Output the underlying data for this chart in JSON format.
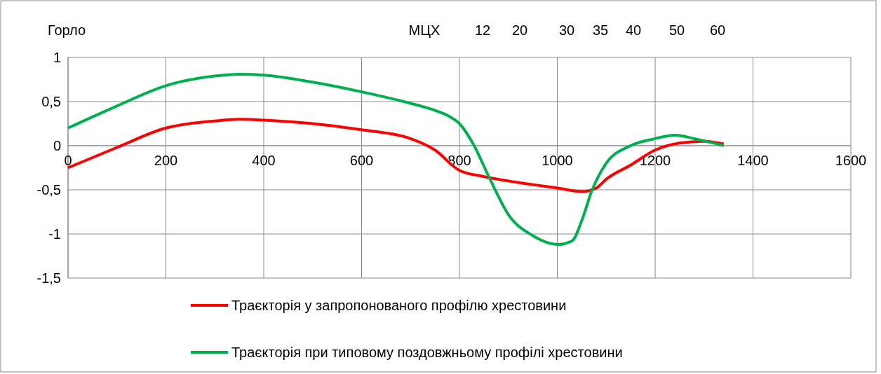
{
  "chart_data": {
    "type": "line",
    "xlim": [
      0,
      1600
    ],
    "xticks": [
      0,
      200,
      400,
      600,
      800,
      1000,
      1200,
      1400,
      1600
    ],
    "ylim": [
      -1.5,
      1
    ],
    "yticks": [
      {
        "value": -1.5,
        "label": "-1,5"
      },
      {
        "value": -1,
        "label": "-1"
      },
      {
        "value": -0.5,
        "label": "-0,5"
      },
      {
        "value": 0,
        "label": "0"
      },
      {
        "value": 0.5,
        "label": "0,5"
      },
      {
        "value": 1,
        "label": "1"
      }
    ],
    "grid": true,
    "legend": "bottom",
    "marker": "none",
    "line_style": "solid",
    "annotations": [
      "Горло",
      "МЦХ",
      "12",
      "20",
      "30",
      "35",
      "40",
      "50",
      "60"
    ],
    "series": [
      {
        "name": "Траєкторія у запропонованого профілю хрестовини",
        "color": "#ff0000",
        "x": [
          0,
          100,
          200,
          300,
          350,
          400,
          500,
          600,
          700,
          750,
          800,
          850,
          900,
          1000,
          1050,
          1080,
          1100,
          1150,
          1200,
          1250,
          1300,
          1340
        ],
        "values": [
          -0.25,
          -0.02,
          0.2,
          0.28,
          0.3,
          0.29,
          0.25,
          0.18,
          0.08,
          -0.05,
          -0.28,
          -0.35,
          -0.4,
          -0.48,
          -0.52,
          -0.48,
          -0.38,
          -0.22,
          -0.05,
          0.03,
          0.05,
          0.02
        ]
      },
      {
        "name": "Траєкторія при типовому поздовжньому профілі хрестовини",
        "color": "#00b050",
        "x": [
          0,
          100,
          200,
          300,
          350,
          400,
          500,
          600,
          700,
          750,
          780,
          800,
          830,
          860,
          900,
          950,
          1000,
          1030,
          1050,
          1070,
          1100,
          1150,
          1200,
          1240,
          1280,
          1340
        ],
        "values": [
          0.2,
          0.45,
          0.68,
          0.79,
          0.81,
          0.8,
          0.72,
          0.61,
          0.48,
          0.4,
          0.33,
          0.25,
          0.0,
          -0.35,
          -0.78,
          -1.02,
          -1.12,
          -1.08,
          -0.85,
          -0.52,
          -0.2,
          0.0,
          0.08,
          0.12,
          0.08,
          0.0
        ]
      }
    ]
  }
}
